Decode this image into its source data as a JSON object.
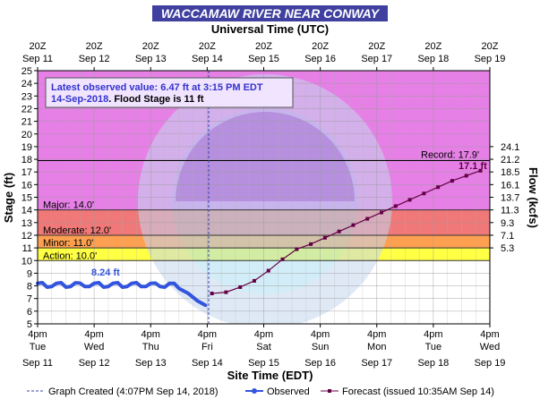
{
  "title": "WACCAMAW RIVER NEAR CONWAY",
  "top_axis_title": "Universal Time (UTC)",
  "bottom_axis_title": "Site Time (EDT)",
  "left_axis_title": "Stage (ft)",
  "right_axis_title": "Flow (kcfs)",
  "info_box": {
    "line1": "Latest observed value: 6.47 ft at 3:15 PM EDT",
    "line2_date": "14-Sep-2018",
    "line2_rest": ". Flood Stage is 11 ft"
  },
  "top_ticks": [
    {
      "top": "20Z",
      "bottom": "Sep 11"
    },
    {
      "top": "20Z",
      "bottom": "Sep 12"
    },
    {
      "top": "20Z",
      "bottom": "Sep 13"
    },
    {
      "top": "20Z",
      "bottom": "Sep 14"
    },
    {
      "top": "20Z",
      "bottom": "Sep 15"
    },
    {
      "top": "20Z",
      "bottom": "Sep 16"
    },
    {
      "top": "20Z",
      "bottom": "Sep 17"
    },
    {
      "top": "20Z",
      "bottom": "Sep 18"
    },
    {
      "top": "20Z",
      "bottom": "Sep 19"
    }
  ],
  "bottom_ticks": [
    {
      "time": "4pm",
      "day": "Tue",
      "date": "Sep 11"
    },
    {
      "time": "4pm",
      "day": "Wed",
      "date": "Sep 12"
    },
    {
      "time": "4pm",
      "day": "Thu",
      "date": "Sep 13"
    },
    {
      "time": "4pm",
      "day": "Fri",
      "date": "Sep 14"
    },
    {
      "time": "4pm",
      "day": "Sat",
      "date": "Sep 15"
    },
    {
      "time": "4pm",
      "day": "Sun",
      "date": "Sep 16"
    },
    {
      "time": "4pm",
      "day": "Mon",
      "date": "Sep 17"
    },
    {
      "time": "4pm",
      "day": "Tue",
      "date": "Sep 18"
    },
    {
      "time": "4pm",
      "day": "Wed",
      "date": "Sep 19"
    }
  ],
  "y_ticks": [
    5,
    6,
    7,
    8,
    9,
    10,
    11,
    12,
    13,
    14,
    15,
    16,
    17,
    18,
    19,
    20,
    21,
    22,
    23,
    24,
    25
  ],
  "flow_ticks": [
    {
      "label": "5.3",
      "stage": 11.0
    },
    {
      "label": "7.1",
      "stage": 12.0
    },
    {
      "label": "9.3",
      "stage": 13.0
    },
    {
      "label": "11.3",
      "stage": 14.0
    },
    {
      "label": "13.7",
      "stage": 15.0
    },
    {
      "label": "16.1",
      "stage": 16.0
    },
    {
      "label": "18.5",
      "stage": 17.0
    },
    {
      "label": "21.2",
      "stage": 18.0
    },
    {
      "label": "24.1",
      "stage": 19.0
    }
  ],
  "bands": [
    {
      "name": "Major",
      "label": "Major: 14.0'",
      "from": 14.0,
      "to": 25.0,
      "color": "#e680e6"
    },
    {
      "name": "Moderate",
      "label": "Moderate: 12.0'",
      "from": 12.0,
      "to": 14.0,
      "color": "#f07878"
    },
    {
      "name": "Minor",
      "label": "Minor: 11.0'",
      "from": 11.0,
      "to": 12.0,
      "color": "#ffa050"
    },
    {
      "name": "Action",
      "label": "Action: 10.0'",
      "from": 10.0,
      "to": 11.0,
      "color": "#ffff44"
    }
  ],
  "record": {
    "label": "Record: 17.9'",
    "value": 17.9
  },
  "crest_label": "17.1 ft",
  "obs_label": "8.24 ft",
  "legend": {
    "created": "Graph Created (4:07PM Sep 14, 2018)",
    "observed": "Observed",
    "forecast": "Forecast (issued 10:35AM Sep 14)"
  },
  "colors": {
    "title_bg": "#4040a0",
    "observed": "#3355dd",
    "forecast": "#660044",
    "info_text": "#3333cc"
  },
  "chart_data": {
    "type": "line",
    "title": "WACCAMAW RIVER NEAR CONWAY",
    "xlabel": "Site Time (EDT)",
    "ylabel": "Stage (ft)",
    "y2label": "Flow (kcfs)",
    "xlim": [
      "2018-09-11 16:00",
      "2018-09-19 16:00"
    ],
    "ylim": [
      5,
      25
    ],
    "grid": true,
    "series": [
      {
        "name": "Observed",
        "x": [
          "2018-09-11 16:00",
          "2018-09-11 18:00",
          "2018-09-11 20:00",
          "2018-09-11 22:00",
          "2018-09-12 00:00",
          "2018-09-12 02:00",
          "2018-09-12 04:00",
          "2018-09-12 06:00",
          "2018-09-12 08:00",
          "2018-09-12 10:00",
          "2018-09-12 12:00",
          "2018-09-12 14:00",
          "2018-09-12 16:00",
          "2018-09-12 18:00",
          "2018-09-12 20:00",
          "2018-09-12 22:00",
          "2018-09-13 00:00",
          "2018-09-13 02:00",
          "2018-09-13 04:00",
          "2018-09-13 06:00",
          "2018-09-13 08:00",
          "2018-09-13 10:00",
          "2018-09-13 12:00",
          "2018-09-13 14:00",
          "2018-09-13 16:00",
          "2018-09-13 18:00",
          "2018-09-13 20:00",
          "2018-09-13 22:00",
          "2018-09-14 00:00",
          "2018-09-14 02:00",
          "2018-09-14 04:00",
          "2018-09-14 06:00",
          "2018-09-14 08:00",
          "2018-09-14 10:00",
          "2018-09-14 12:00",
          "2018-09-14 15:15"
        ],
        "values": [
          8.2,
          8.25,
          7.9,
          7.95,
          8.2,
          8.25,
          7.9,
          7.95,
          8.24,
          8.22,
          7.95,
          7.95,
          8.2,
          8.25,
          7.9,
          7.95,
          8.2,
          8.25,
          7.9,
          7.95,
          8.2,
          8.25,
          7.95,
          7.95,
          8.2,
          8.22,
          7.95,
          7.9,
          8.2,
          8.2,
          7.8,
          7.6,
          7.4,
          7.1,
          6.8,
          6.47
        ]
      },
      {
        "name": "Forecast",
        "x": [
          "2018-09-14 18:00",
          "2018-09-15 00:00",
          "2018-09-15 06:00",
          "2018-09-15 12:00",
          "2018-09-15 18:00",
          "2018-09-16 00:00",
          "2018-09-16 06:00",
          "2018-09-16 12:00",
          "2018-09-16 18:00",
          "2018-09-17 00:00",
          "2018-09-17 06:00",
          "2018-09-17 12:00",
          "2018-09-17 18:00",
          "2018-09-18 00:00",
          "2018-09-18 06:00",
          "2018-09-18 12:00",
          "2018-09-18 18:00",
          "2018-09-19 00:00",
          "2018-09-19 06:00",
          "2018-09-19 12:00"
        ],
        "values": [
          7.4,
          7.5,
          7.9,
          8.4,
          9.2,
          10.1,
          10.9,
          11.3,
          11.8,
          12.3,
          12.8,
          13.3,
          13.8,
          14.3,
          14.8,
          15.3,
          15.8,
          16.3,
          16.7,
          17.1
        ]
      }
    ]
  }
}
